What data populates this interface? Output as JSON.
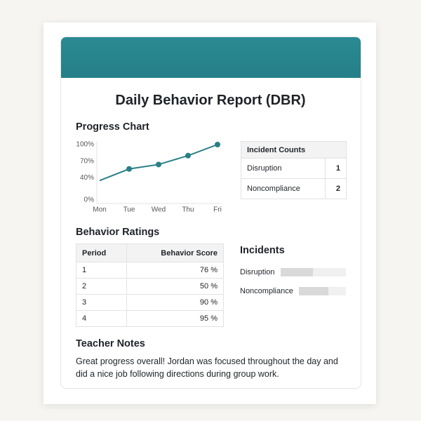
{
  "header": {
    "title": "Daily Behavior Report (DBR)"
  },
  "incident_counts": {
    "title": "Incident Counts",
    "rows": [
      [
        "Disruption",
        1
      ],
      [
        "Noncompliance",
        2
      ]
    ]
  },
  "behavior_ratings": {
    "title": "Behavior Ratings",
    "columns": [
      "Period",
      "Behavior Score"
    ],
    "rows": [
      [
        1,
        "76 %"
      ],
      [
        2,
        "50 %"
      ],
      [
        3,
        "90 %"
      ],
      [
        4,
        "95 %"
      ]
    ]
  },
  "teacher_notes": {
    "title": "Teacher Notes",
    "text": "Great progress overall!  Jordan was focused throughout the day and did a nice job following directions during group work."
  },
  "chart_data": [
    {
      "type": "line",
      "title": "Progress Chart",
      "categories": [
        "Mon",
        "Tue",
        "Wed",
        "Thu",
        "Fri"
      ],
      "values": [
        35,
        56,
        64,
        80,
        100
      ],
      "color": "#2a7f86",
      "ylim": [
        0,
        100
      ],
      "yticks": [
        {
          "value": 0,
          "label": "0%"
        },
        {
          "value": 40,
          "label": "40%"
        },
        {
          "value": 70,
          "label": "70%"
        },
        {
          "value": 100,
          "label": "100%"
        }
      ]
    },
    {
      "type": "bar",
      "title": "Incidents",
      "categories": [
        "Disruption",
        "Noncompliance"
      ],
      "values": [
        50,
        63
      ],
      "xlim": [
        0,
        100
      ],
      "color": "#d9d9d9"
    }
  ]
}
